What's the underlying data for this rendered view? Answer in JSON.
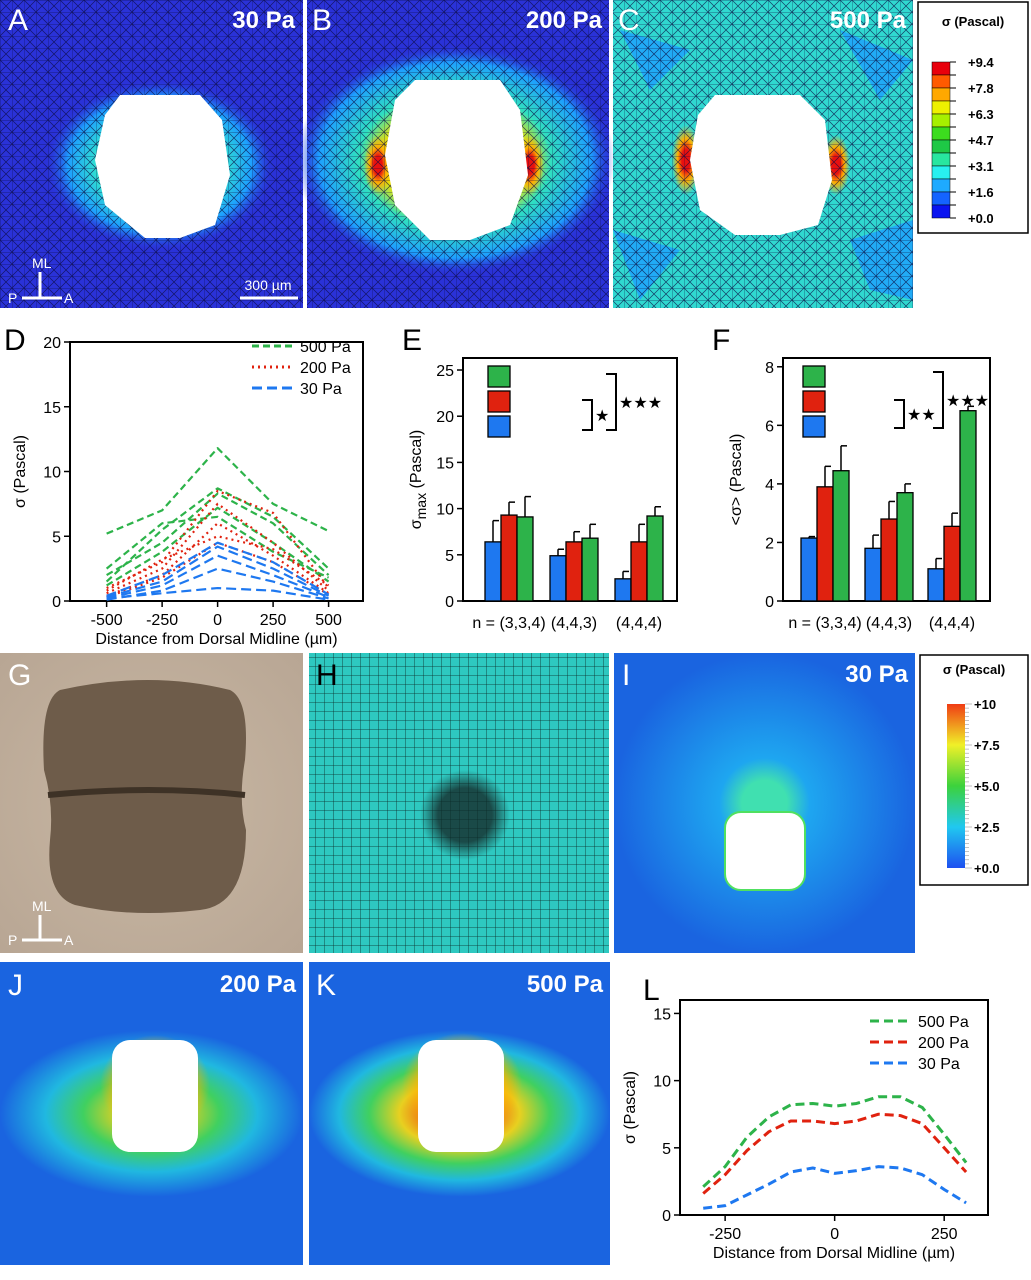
{
  "panels": {
    "A": {
      "letter": "A",
      "label": "30 Pa"
    },
    "B": {
      "letter": "B",
      "label": "200 Pa"
    },
    "C": {
      "letter": "C",
      "label": "500 Pa"
    },
    "G": {
      "letter": "G"
    },
    "H": {
      "letter": "H"
    },
    "I": {
      "letter": "I",
      "label": "30 Pa"
    },
    "J": {
      "letter": "J",
      "label": "200 Pa"
    },
    "K": {
      "letter": "K",
      "label": "500 Pa"
    },
    "D": {
      "letter": "D"
    },
    "E": {
      "letter": "E"
    },
    "F": {
      "letter": "F"
    },
    "L": {
      "letter": "L"
    }
  },
  "orientation": {
    "ml": "ML",
    "p": "P",
    "a": "A"
  },
  "scalebar": "300 µm",
  "colorbar_top": {
    "title": "σ (Pascal)",
    "ticks": [
      "+9.4",
      "+7.8",
      "+6.3",
      "+4.7",
      "+3.1",
      "+1.6",
      "+0.0"
    ],
    "colors": [
      "#e8000c",
      "#ff5a00",
      "#ffa800",
      "#eef000",
      "#a6f000",
      "#3cdc1e",
      "#1ec846",
      "#28e6a0",
      "#28f0f0",
      "#1eaaff",
      "#1464ff",
      "#0a14f0"
    ]
  },
  "colorbar_bottom": {
    "title": "σ (Pascal)",
    "ticks": [
      "+10",
      "+7.5",
      "+5.0",
      "+2.5",
      "+0.0"
    ]
  },
  "colors": {
    "500 Pa": "#2db34a",
    "200 Pa": "#e0220f",
    "30 Pa": "#1e78f0"
  },
  "chart_data": [
    {
      "panel": "D",
      "type": "line",
      "xlabel": "Distance from Dorsal Midline (µm)",
      "ylabel": "σ (Pascal)",
      "xticks": [
        -500,
        -250,
        0,
        250,
        500
      ],
      "yticks": [
        0,
        5,
        10,
        15,
        20
      ],
      "xlim": [
        -665,
        655
      ],
      "ylim": [
        0,
        20
      ],
      "legend": "top-right",
      "x": [
        -500,
        -250,
        0,
        250,
        500
      ],
      "series": [
        {
          "name": "500 Pa",
          "style": "dashed",
          "traces": [
            [
              5.2,
              7.0,
              11.8,
              7.5,
              5.4
            ],
            [
              1.5,
              5.5,
              8.7,
              6.5,
              2.5
            ],
            [
              2.0,
              4.5,
              8.3,
              6.0,
              2.0
            ],
            [
              1.2,
              3.8,
              7.2,
              4.5,
              1.5
            ],
            [
              2.5,
              6.0,
              6.5,
              3.8,
              1.8
            ]
          ]
        },
        {
          "name": "200 Pa",
          "style": "dotted",
          "traces": [
            [
              1.0,
              3.0,
              8.5,
              6.8,
              1.0
            ],
            [
              0.6,
              2.5,
              7.5,
              4.5,
              0.8
            ],
            [
              0.4,
              2.0,
              6.0,
              3.5,
              0.6
            ],
            [
              0.8,
              3.2,
              5.0,
              4.0,
              1.2
            ],
            [
              0.3,
              1.8,
              4.5,
              3.0,
              0.5
            ]
          ]
        },
        {
          "name": "30 Pa",
          "style": "dashed-long",
          "traces": [
            [
              0.3,
              1.5,
              4.2,
              2.5,
              0.4
            ],
            [
              0.2,
              1.2,
              3.5,
              2.0,
              0.3
            ],
            [
              0.4,
              2.0,
              4.5,
              3.0,
              0.5
            ],
            [
              0.1,
              0.8,
              2.5,
              1.5,
              0.2
            ],
            [
              0.2,
              0.6,
              1.0,
              0.8,
              0.1
            ]
          ]
        }
      ]
    },
    {
      "panel": "E",
      "type": "bar",
      "ylabel_main": "σ",
      "ylabel_sub": "max",
      "ylabel_unit": " (Pascal)",
      "categories": [
        "n = (3,3,4)",
        "(4,4,3)",
        "(4,4,4)"
      ],
      "yticks": [
        0,
        5,
        10,
        15,
        20,
        25
      ],
      "ylim": [
        0,
        26.3
      ],
      "legend": "top-left",
      "significance": [
        {
          "pair": [
            "200 Pa",
            "30 Pa"
          ],
          "label": "★"
        },
        {
          "pair": [
            "500 Pa",
            "30 Pa"
          ],
          "label": "★★★"
        }
      ],
      "series": [
        {
          "name": "30 Pa",
          "values": [
            6.4,
            4.9,
            2.4
          ],
          "errors": [
            2.3,
            0.7,
            0.8
          ]
        },
        {
          "name": "200 Pa",
          "values": [
            9.3,
            6.4,
            6.4
          ],
          "errors": [
            1.4,
            1.1,
            1.9
          ]
        },
        {
          "name": "500 Pa",
          "values": [
            9.1,
            6.8,
            9.2
          ],
          "errors": [
            2.2,
            1.5,
            1.0
          ]
        }
      ]
    },
    {
      "panel": "F",
      "type": "bar",
      "ylabel_main": "<σ> (Pascal)",
      "categories": [
        "n = (3,3,4)",
        "(4,4,3)",
        "(4,4,4)"
      ],
      "yticks": [
        0,
        2,
        4,
        6,
        8
      ],
      "ylim": [
        0,
        8.3
      ],
      "legend": "top-left",
      "significance": [
        {
          "pair": [
            "200 Pa",
            "30 Pa"
          ],
          "label": "★★"
        },
        {
          "pair": [
            "500 Pa",
            "30 Pa"
          ],
          "label": "★★★"
        }
      ],
      "series": [
        {
          "name": "30 Pa",
          "values": [
            2.15,
            1.8,
            1.1
          ],
          "errors": [
            0.05,
            0.45,
            0.35
          ]
        },
        {
          "name": "200 Pa",
          "values": [
            3.9,
            2.8,
            2.55
          ],
          "errors": [
            0.7,
            0.6,
            0.45
          ]
        },
        {
          "name": "500 Pa",
          "values": [
            4.45,
            3.7,
            6.5
          ],
          "errors": [
            0.85,
            0.3,
            0.15
          ]
        }
      ]
    },
    {
      "panel": "L",
      "type": "line",
      "xlabel": "Distance from Dorsal Midline (µm)",
      "ylabel": "σ (Pascal)",
      "xticks": [
        -250,
        0,
        250
      ],
      "yticks": [
        0,
        5,
        10,
        15
      ],
      "xlim": [
        -353,
        350
      ],
      "ylim": [
        0,
        16
      ],
      "legend": "top-right",
      "x": [
        -300,
        -250,
        -200,
        -150,
        -100,
        -50,
        0,
        50,
        100,
        150,
        200,
        250,
        300
      ],
      "series": [
        {
          "name": "500 Pa",
          "values": [
            2.1,
            3.6,
            5.8,
            7.3,
            8.2,
            8.3,
            8.1,
            8.3,
            8.8,
            8.8,
            8.0,
            6.0,
            3.9
          ]
        },
        {
          "name": "200 Pa",
          "values": [
            1.6,
            3.0,
            4.8,
            6.2,
            7.0,
            7.0,
            6.8,
            7.0,
            7.5,
            7.4,
            6.8,
            5.0,
            3.2
          ]
        },
        {
          "name": "30 Pa",
          "values": [
            0.5,
            0.7,
            1.5,
            2.3,
            3.2,
            3.5,
            3.1,
            3.3,
            3.6,
            3.5,
            3.0,
            1.9,
            0.9
          ]
        }
      ]
    }
  ]
}
